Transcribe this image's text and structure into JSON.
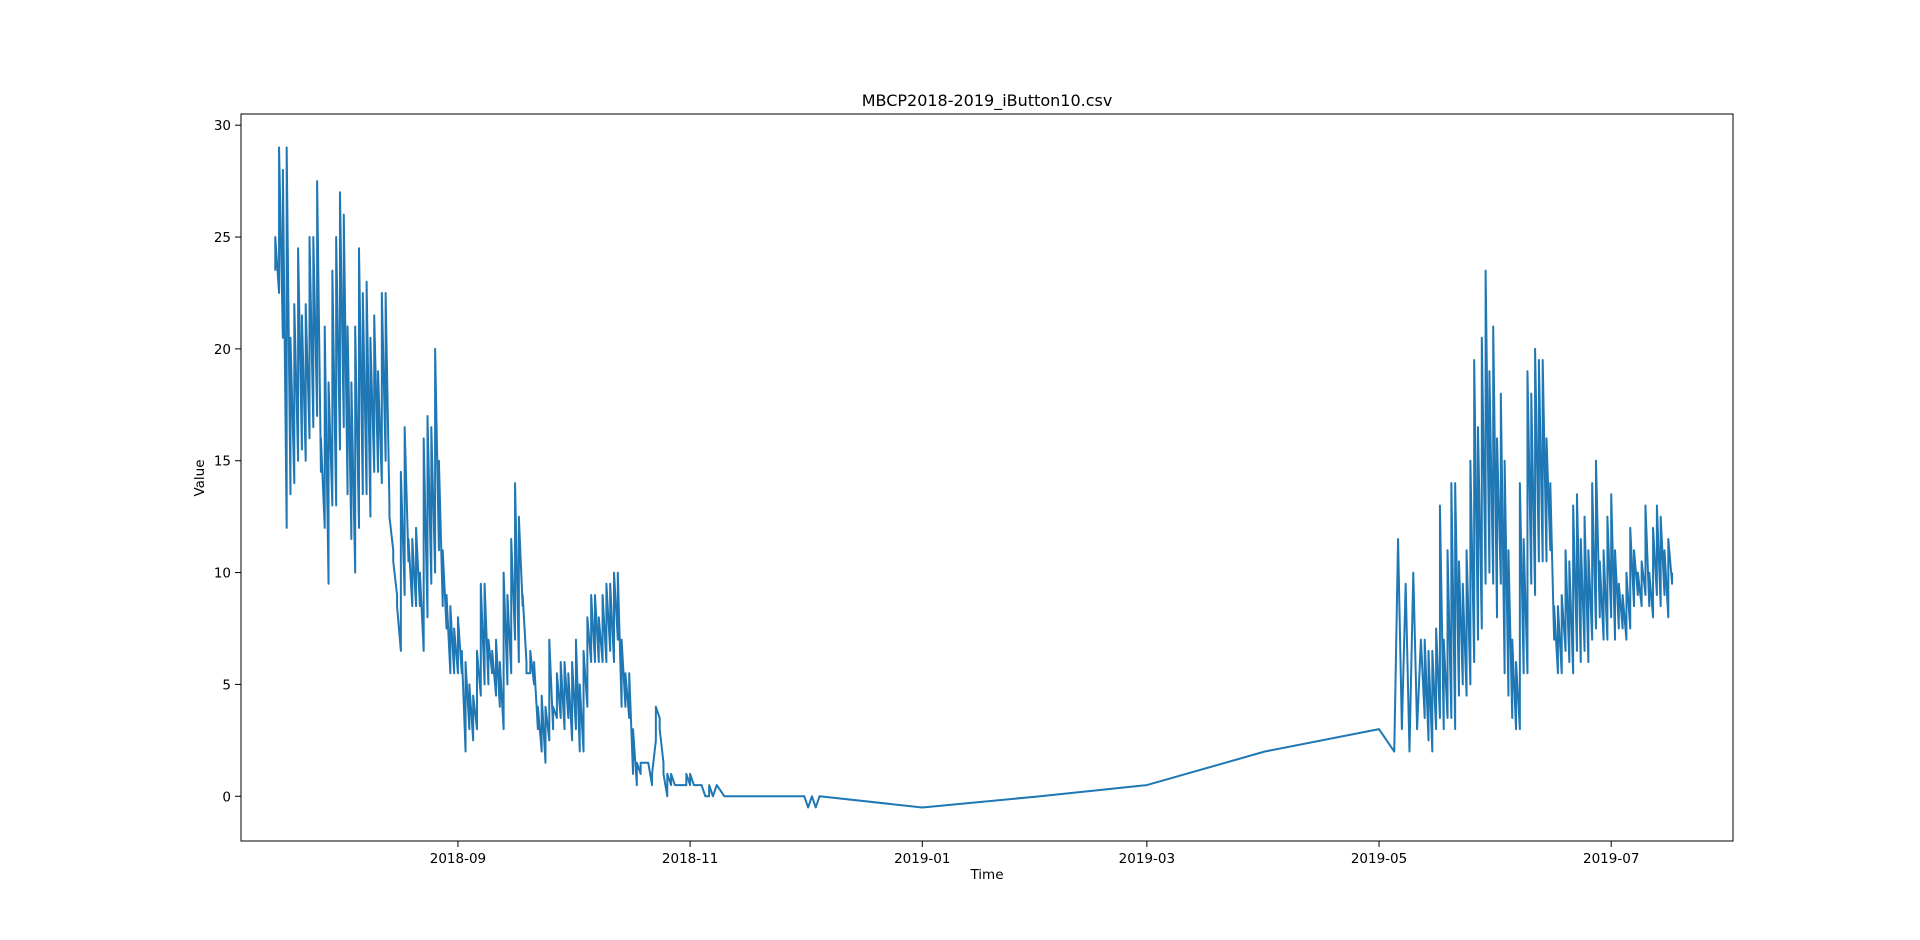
{
  "chart_data": {
    "type": "line",
    "title": "MBCP2018-2019_iButton10.csv",
    "xlabel": "Time",
    "ylabel": "Value",
    "xlim": [
      "2018-07-06",
      "2019-08-02"
    ],
    "ylim": [
      -2,
      30.5
    ],
    "x_ticks": [
      "2018-09",
      "2018-11",
      "2019-01",
      "2019-03",
      "2019-05",
      "2019-07"
    ],
    "y_ticks": [
      0,
      5,
      10,
      15,
      20,
      25,
      30
    ],
    "grid": false,
    "legend": "none",
    "colors": {
      "line": "#1f77b4",
      "axes": "#000000",
      "background": "#ffffff"
    },
    "series": [
      {
        "x": [
          "2018-07-15",
          "2018-07-15",
          "2018-07-16",
          "2018-07-16",
          "2018-07-17",
          "2018-07-17",
          "2018-07-18",
          "2018-07-18",
          "2018-07-19",
          "2018-07-19",
          "2018-07-20",
          "2018-07-20",
          "2018-07-21",
          "2018-07-21",
          "2018-07-22",
          "2018-07-22",
          "2018-07-23",
          "2018-07-23",
          "2018-07-24",
          "2018-07-24",
          "2018-07-25",
          "2018-07-25",
          "2018-07-26",
          "2018-07-26",
          "2018-07-27",
          "2018-07-27",
          "2018-07-28",
          "2018-07-28",
          "2018-07-29",
          "2018-07-29",
          "2018-07-30",
          "2018-07-30",
          "2018-07-31",
          "2018-07-31",
          "2018-08-01",
          "2018-08-01",
          "2018-08-02",
          "2018-08-02",
          "2018-08-03",
          "2018-08-03",
          "2018-08-04",
          "2018-08-04",
          "2018-08-05",
          "2018-08-05",
          "2018-08-06",
          "2018-08-06",
          "2018-08-07",
          "2018-08-07",
          "2018-08-08",
          "2018-08-08",
          "2018-08-09",
          "2018-08-09",
          "2018-08-10",
          "2018-08-10",
          "2018-08-11",
          "2018-08-11",
          "2018-08-12",
          "2018-08-12",
          "2018-08-13",
          "2018-08-13",
          "2018-08-14",
          "2018-08-14",
          "2018-08-15",
          "2018-08-15",
          "2018-08-16",
          "2018-08-16",
          "2018-08-17",
          "2018-08-17",
          "2018-08-18",
          "2018-08-18",
          "2018-08-19",
          "2018-08-19",
          "2018-08-20",
          "2018-08-20",
          "2018-08-21",
          "2018-08-21",
          "2018-08-22",
          "2018-08-22",
          "2018-08-23",
          "2018-08-23",
          "2018-08-24",
          "2018-08-24",
          "2018-08-25",
          "2018-08-25",
          "2018-08-26",
          "2018-08-26",
          "2018-08-27",
          "2018-08-27",
          "2018-08-28",
          "2018-08-28",
          "2018-08-29",
          "2018-08-29",
          "2018-08-30",
          "2018-08-30",
          "2018-08-31",
          "2018-08-31",
          "2018-09-01",
          "2018-09-01",
          "2018-09-02",
          "2018-09-02",
          "2018-09-03",
          "2018-09-03",
          "2018-09-04",
          "2018-09-04",
          "2018-09-05",
          "2018-09-05",
          "2018-09-06",
          "2018-09-06",
          "2018-09-07",
          "2018-09-07",
          "2018-09-08",
          "2018-09-08",
          "2018-09-09",
          "2018-09-09",
          "2018-09-10",
          "2018-09-10",
          "2018-09-11",
          "2018-09-11",
          "2018-09-12",
          "2018-09-12",
          "2018-09-13",
          "2018-09-13",
          "2018-09-14",
          "2018-09-14",
          "2018-09-15",
          "2018-09-15",
          "2018-09-16",
          "2018-09-16",
          "2018-09-17",
          "2018-09-17",
          "2018-09-18",
          "2018-09-18",
          "2018-09-19",
          "2018-09-19",
          "2018-09-20",
          "2018-09-20",
          "2018-09-21",
          "2018-09-21",
          "2018-09-22",
          "2018-09-22",
          "2018-09-23",
          "2018-09-23",
          "2018-09-24",
          "2018-09-24",
          "2018-09-25",
          "2018-09-25",
          "2018-09-26",
          "2018-09-26",
          "2018-09-27",
          "2018-09-27",
          "2018-09-28",
          "2018-09-28",
          "2018-09-29",
          "2018-09-29",
          "2018-09-30",
          "2018-09-30",
          "2018-10-01",
          "2018-10-01",
          "2018-10-02",
          "2018-10-02",
          "2018-10-03",
          "2018-10-03",
          "2018-10-04",
          "2018-10-04",
          "2018-10-05",
          "2018-10-05",
          "2018-10-06",
          "2018-10-06",
          "2018-10-07",
          "2018-10-07",
          "2018-10-08",
          "2018-10-08",
          "2018-10-09",
          "2018-10-09",
          "2018-10-10",
          "2018-10-10",
          "2018-10-11",
          "2018-10-11",
          "2018-10-12",
          "2018-10-12",
          "2018-10-13",
          "2018-10-13",
          "2018-10-14",
          "2018-10-14",
          "2018-10-15",
          "2018-10-15",
          "2018-10-16",
          "2018-10-16",
          "2018-10-17",
          "2018-10-17",
          "2018-10-18",
          "2018-10-18",
          "2018-10-19",
          "2018-10-19",
          "2018-10-20",
          "2018-10-20",
          "2018-10-21",
          "2018-10-21",
          "2018-10-22",
          "2018-10-22",
          "2018-10-23",
          "2018-10-23",
          "2018-10-24",
          "2018-10-24",
          "2018-10-25",
          "2018-10-25",
          "2018-10-26",
          "2018-10-26",
          "2018-10-27",
          "2018-10-27",
          "2018-10-28",
          "2018-10-28",
          "2018-10-29",
          "2018-10-29",
          "2018-10-30",
          "2018-10-30",
          "2018-10-31",
          "2018-10-31",
          "2018-11-01",
          "2018-11-01",
          "2018-11-02",
          "2018-11-02",
          "2018-11-03",
          "2018-11-03",
          "2018-11-04",
          "2018-11-04",
          "2018-11-05",
          "2018-11-05",
          "2018-11-06",
          "2018-11-06",
          "2018-11-07",
          "2018-11-08",
          "2018-11-10",
          "2018-11-15",
          "2018-11-20",
          "2018-11-25",
          "2018-11-26",
          "2018-11-27",
          "2018-12-01",
          "2018-12-02",
          "2018-12-03",
          "2018-12-04",
          "2018-12-05",
          "2019-01-01",
          "2019-02-01",
          "2019-03-01",
          "2019-04-01",
          "2019-05-01",
          "2019-05-05",
          "2019-05-06",
          "2019-05-07",
          "2019-05-08",
          "2019-05-09",
          "2019-05-10",
          "2019-05-11",
          "2019-05-12",
          "2019-05-13",
          "2019-05-13",
          "2019-05-14",
          "2019-05-14",
          "2019-05-15",
          "2019-05-15",
          "2019-05-16",
          "2019-05-16",
          "2019-05-17",
          "2019-05-17",
          "2019-05-18",
          "2019-05-18",
          "2019-05-19",
          "2019-05-19",
          "2019-05-20",
          "2019-05-20",
          "2019-05-21",
          "2019-05-21",
          "2019-05-22",
          "2019-05-22",
          "2019-05-23",
          "2019-05-23",
          "2019-05-24",
          "2019-05-24",
          "2019-05-25",
          "2019-05-25",
          "2019-05-26",
          "2019-05-26",
          "2019-05-27",
          "2019-05-27",
          "2019-05-28",
          "2019-05-28",
          "2019-05-29",
          "2019-05-29",
          "2019-05-30",
          "2019-05-30",
          "2019-05-31",
          "2019-05-31",
          "2019-06-01",
          "2019-06-01",
          "2019-06-02",
          "2019-06-02",
          "2019-06-03",
          "2019-06-03",
          "2019-06-04",
          "2019-06-04",
          "2019-06-05",
          "2019-06-05",
          "2019-06-06",
          "2019-06-06",
          "2019-06-07",
          "2019-06-07",
          "2019-06-08",
          "2019-06-08",
          "2019-06-09",
          "2019-06-09",
          "2019-06-10",
          "2019-06-10",
          "2019-06-11",
          "2019-06-11",
          "2019-06-12",
          "2019-06-12",
          "2019-06-13",
          "2019-06-13",
          "2019-06-14",
          "2019-06-14",
          "2019-06-15",
          "2019-06-15",
          "2019-06-16",
          "2019-06-16",
          "2019-06-17",
          "2019-06-17",
          "2019-06-18",
          "2019-06-18",
          "2019-06-19",
          "2019-06-19",
          "2019-06-20",
          "2019-06-20",
          "2019-06-21",
          "2019-06-21",
          "2019-06-22",
          "2019-06-22",
          "2019-06-23",
          "2019-06-23",
          "2019-06-24",
          "2019-06-24",
          "2019-06-25",
          "2019-06-25",
          "2019-06-26",
          "2019-06-26",
          "2019-06-27",
          "2019-06-27",
          "2019-06-28",
          "2019-06-28",
          "2019-06-29",
          "2019-06-29",
          "2019-06-30",
          "2019-06-30",
          "2019-07-01",
          "2019-07-01",
          "2019-07-02",
          "2019-07-02",
          "2019-07-03",
          "2019-07-03",
          "2019-07-04",
          "2019-07-04",
          "2019-07-05",
          "2019-07-05",
          "2019-07-06",
          "2019-07-06",
          "2019-07-07",
          "2019-07-07",
          "2019-07-08",
          "2019-07-08",
          "2019-07-09",
          "2019-07-09",
          "2019-07-10",
          "2019-07-10",
          "2019-07-11",
          "2019-07-11",
          "2019-07-12",
          "2019-07-12",
          "2019-07-13",
          "2019-07-13",
          "2019-07-14",
          "2019-07-14",
          "2019-07-15",
          "2019-07-15",
          "2019-07-16",
          "2019-07-16",
          "2019-07-17",
          "2019-07-17"
        ],
        "y": [
          23.5,
          25,
          22.5,
          29,
          20.5,
          28,
          12,
          29,
          13.5,
          20.5,
          14,
          22,
          15,
          24.5,
          15.5,
          21.5,
          15,
          22,
          16,
          25,
          16.5,
          25,
          17,
          27.5,
          14.5,
          16,
          12,
          21,
          9.5,
          18.5,
          13,
          23.5,
          13,
          25,
          15.5,
          27,
          16.5,
          26,
          13.5,
          21,
          11.5,
          18.5,
          10,
          21,
          12,
          24.5,
          13.5,
          22.5,
          13.5,
          23,
          12.5,
          20.5,
          14.5,
          21.5,
          14.5,
          19,
          14,
          22.5,
          15,
          22.5,
          13,
          12.5,
          11,
          10.5,
          9,
          8.5,
          6.5,
          14.5,
          9,
          16.5,
          10.5,
          11.5,
          8.5,
          11.5,
          8.5,
          12,
          8.5,
          10,
          6.5,
          16,
          8,
          17,
          9.5,
          16.5,
          10,
          20,
          11,
          15,
          8.5,
          11,
          7.5,
          9,
          5.5,
          8.5,
          5.5,
          7.5,
          5.5,
          8,
          5.5,
          6.5,
          2,
          6,
          3,
          5,
          2.5,
          4.5,
          3,
          6.5,
          4.5,
          9.5,
          5,
          9.5,
          5,
          7,
          5.5,
          6.5,
          4.5,
          7,
          4,
          6,
          3,
          10,
          5,
          9,
          5.5,
          11.5,
          7,
          14,
          6,
          12.5,
          8.5,
          9,
          6,
          5.5,
          5.5,
          6.5,
          5,
          6,
          3,
          4,
          2,
          4.5,
          1.5,
          4,
          2.5,
          7,
          3,
          4,
          3.5,
          5.5,
          3.5,
          6,
          3,
          6,
          3.5,
          5.5,
          2.5,
          6,
          3,
          7,
          2,
          5,
          2,
          6.5,
          4,
          8,
          6,
          9,
          6,
          9,
          6,
          8,
          6,
          9,
          6,
          9.5,
          6.5,
          9.5,
          6,
          10,
          7,
          10,
          4,
          7,
          4,
          5.5,
          3.5,
          5.5,
          1,
          3,
          0.5,
          1.5,
          1,
          1.5,
          1.5,
          1.5,
          1.5,
          1.5,
          0.5,
          1,
          2.5,
          4,
          3.5,
          3,
          1.5,
          1,
          0,
          1,
          0.5,
          1,
          0.5,
          0.5,
          0.5,
          0.5,
          0.5,
          0.5,
          0.5,
          1,
          0.5,
          1,
          0.5,
          0.5,
          0.5,
          0.5,
          0.5,
          0.5,
          0,
          0,
          0,
          0.5,
          0,
          0.5,
          0,
          0,
          0,
          0,
          0,
          0,
          0,
          -0.5,
          0,
          -0.5,
          0,
          -0.5,
          0,
          0.5,
          2,
          3,
          2,
          11.5,
          3,
          9.5,
          2,
          10,
          3,
          7,
          3.5,
          7,
          2.5,
          6.5,
          2,
          6.5,
          3,
          7.5,
          3.5,
          13,
          3,
          7,
          3.5,
          11,
          3.5,
          14,
          3,
          14,
          4.5,
          10.5,
          5,
          9.5,
          4.5,
          11,
          5,
          15,
          6,
          19.5,
          7,
          16.5,
          7.5,
          20.5,
          9.5,
          23.5,
          10,
          19,
          9.5,
          21,
          8,
          16,
          9.5,
          18,
          5.5,
          15,
          4.5,
          11,
          3.5,
          7,
          3,
          6,
          3,
          14,
          5.5,
          11.5,
          5.5,
          19,
          9.5,
          18,
          9,
          20,
          10.5,
          19.5,
          10.5,
          19.5,
          10.5,
          16,
          11,
          14,
          7,
          8.5,
          5.5,
          8.5,
          5.5,
          9,
          6.5,
          11,
          6,
          10.5,
          5.5,
          13,
          6.5,
          13.5,
          6,
          11.5,
          6.5,
          12.5,
          6,
          11,
          7,
          14,
          7.5,
          15,
          8,
          10.5,
          7,
          11,
          7,
          12.5,
          8,
          13.5,
          7,
          11,
          7.5,
          9.5,
          7.5,
          9,
          7,
          10,
          7.5,
          12,
          8.5,
          11,
          9,
          10,
          8.5,
          10.5,
          9,
          13,
          8.5,
          10,
          8,
          12,
          9,
          13,
          8.5,
          12.5,
          9,
          11,
          8,
          11.5,
          9.5,
          10
        ]
      }
    ]
  }
}
